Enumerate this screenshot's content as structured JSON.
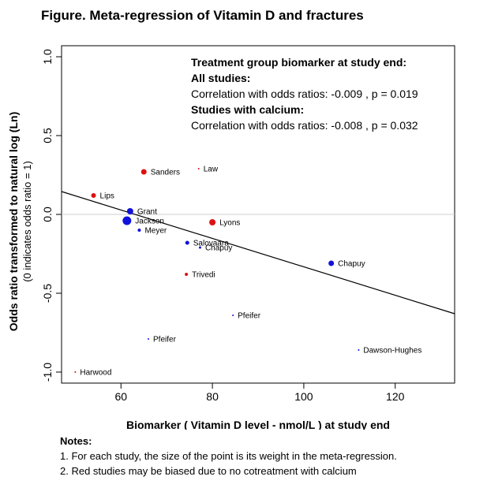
{
  "figure_title": "Figure.  Meta-regression of  Vitamin D and fractures",
  "notes": {
    "heading": "Notes:",
    "lines": [
      "1. For each study, the size of the point is its weight in the meta-regression.",
      "2. Red studies may be biased due to  no cotreatment with calcium"
    ]
  },
  "chart_data": {
    "type": "scatter",
    "xlabel": "Biomarker ( Vitamin D level - nmol/L ) at study end",
    "ylabel": "Odds ratio transformed to natural log (Ln)",
    "ylabel2": "(0 indicates odds ratio = 1)",
    "xlim": [
      47,
      133
    ],
    "ylim": [
      -1.07,
      1.07
    ],
    "x_ticks": [
      60,
      80,
      100,
      120
    ],
    "y_ticks": [
      -1.0,
      -0.5,
      0.0,
      0.5,
      1.0
    ],
    "y_tick_labels": [
      "-1.0",
      "-0.5",
      "0.0",
      "0.5",
      "1.0"
    ],
    "reference_line_y": 0,
    "regression_line": {
      "x": [
        47,
        133
      ],
      "y": [
        0.145,
        -0.63
      ]
    },
    "annotation": [
      {
        "text": "Treatment group biomarker at study end:",
        "bold": true
      },
      {
        "text": "All studies:",
        "bold": true
      },
      {
        "text": "Correlation with odds ratios:  -0.009 , p = 0.019",
        "bold": false
      },
      {
        "text": "Studies with calcium:",
        "bold": true
      },
      {
        "text": "Correlation with odds ratios:  -0.008 , p = 0.032",
        "bold": false
      }
    ],
    "colors": {
      "red": "#dd1111",
      "blue": "#1111dd"
    },
    "points": [
      {
        "label": "Sanders",
        "x": 65,
        "y": 0.27,
        "color": "red",
        "size": 3.5
      },
      {
        "label": "Law",
        "x": 77,
        "y": 0.29,
        "color": "red",
        "size": 1
      },
      {
        "label": "Lips",
        "x": 54,
        "y": 0.12,
        "color": "red",
        "size": 3
      },
      {
        "label": "Grant",
        "x": 62,
        "y": 0.02,
        "color": "blue",
        "size": 4
      },
      {
        "label": "Jackson",
        "x": 61.3,
        "y": -0.04,
        "color": "blue",
        "size": 5.5
      },
      {
        "label": "Lyons",
        "x": 80,
        "y": -0.05,
        "color": "red",
        "size": 4
      },
      {
        "label": "Meyer",
        "x": 64,
        "y": -0.1,
        "color": "blue",
        "size": 2
      },
      {
        "label": "Salovaara",
        "x": 74.5,
        "y": -0.18,
        "color": "blue",
        "size": 2.5
      },
      {
        "label": "Chapuy",
        "x": 77.3,
        "y": -0.21,
        "color": "blue",
        "size": 1.5
      },
      {
        "label": "Chapuy",
        "x": 106,
        "y": -0.31,
        "color": "blue",
        "size": 3.5
      },
      {
        "label": "Trivedi",
        "x": 74.3,
        "y": -0.38,
        "color": "red",
        "size": 2
      },
      {
        "label": "Pfeifer",
        "x": 84.5,
        "y": -0.64,
        "color": "blue",
        "size": 1
      },
      {
        "label": "Pfeifer",
        "x": 66,
        "y": -0.79,
        "color": "blue",
        "size": 1
      },
      {
        "label": "Dawson-Hughes",
        "x": 112,
        "y": -0.86,
        "color": "blue",
        "size": 1
      },
      {
        "label": "Harwood",
        "x": 50,
        "y": -1.0,
        "color": "red",
        "size": 1
      }
    ]
  }
}
